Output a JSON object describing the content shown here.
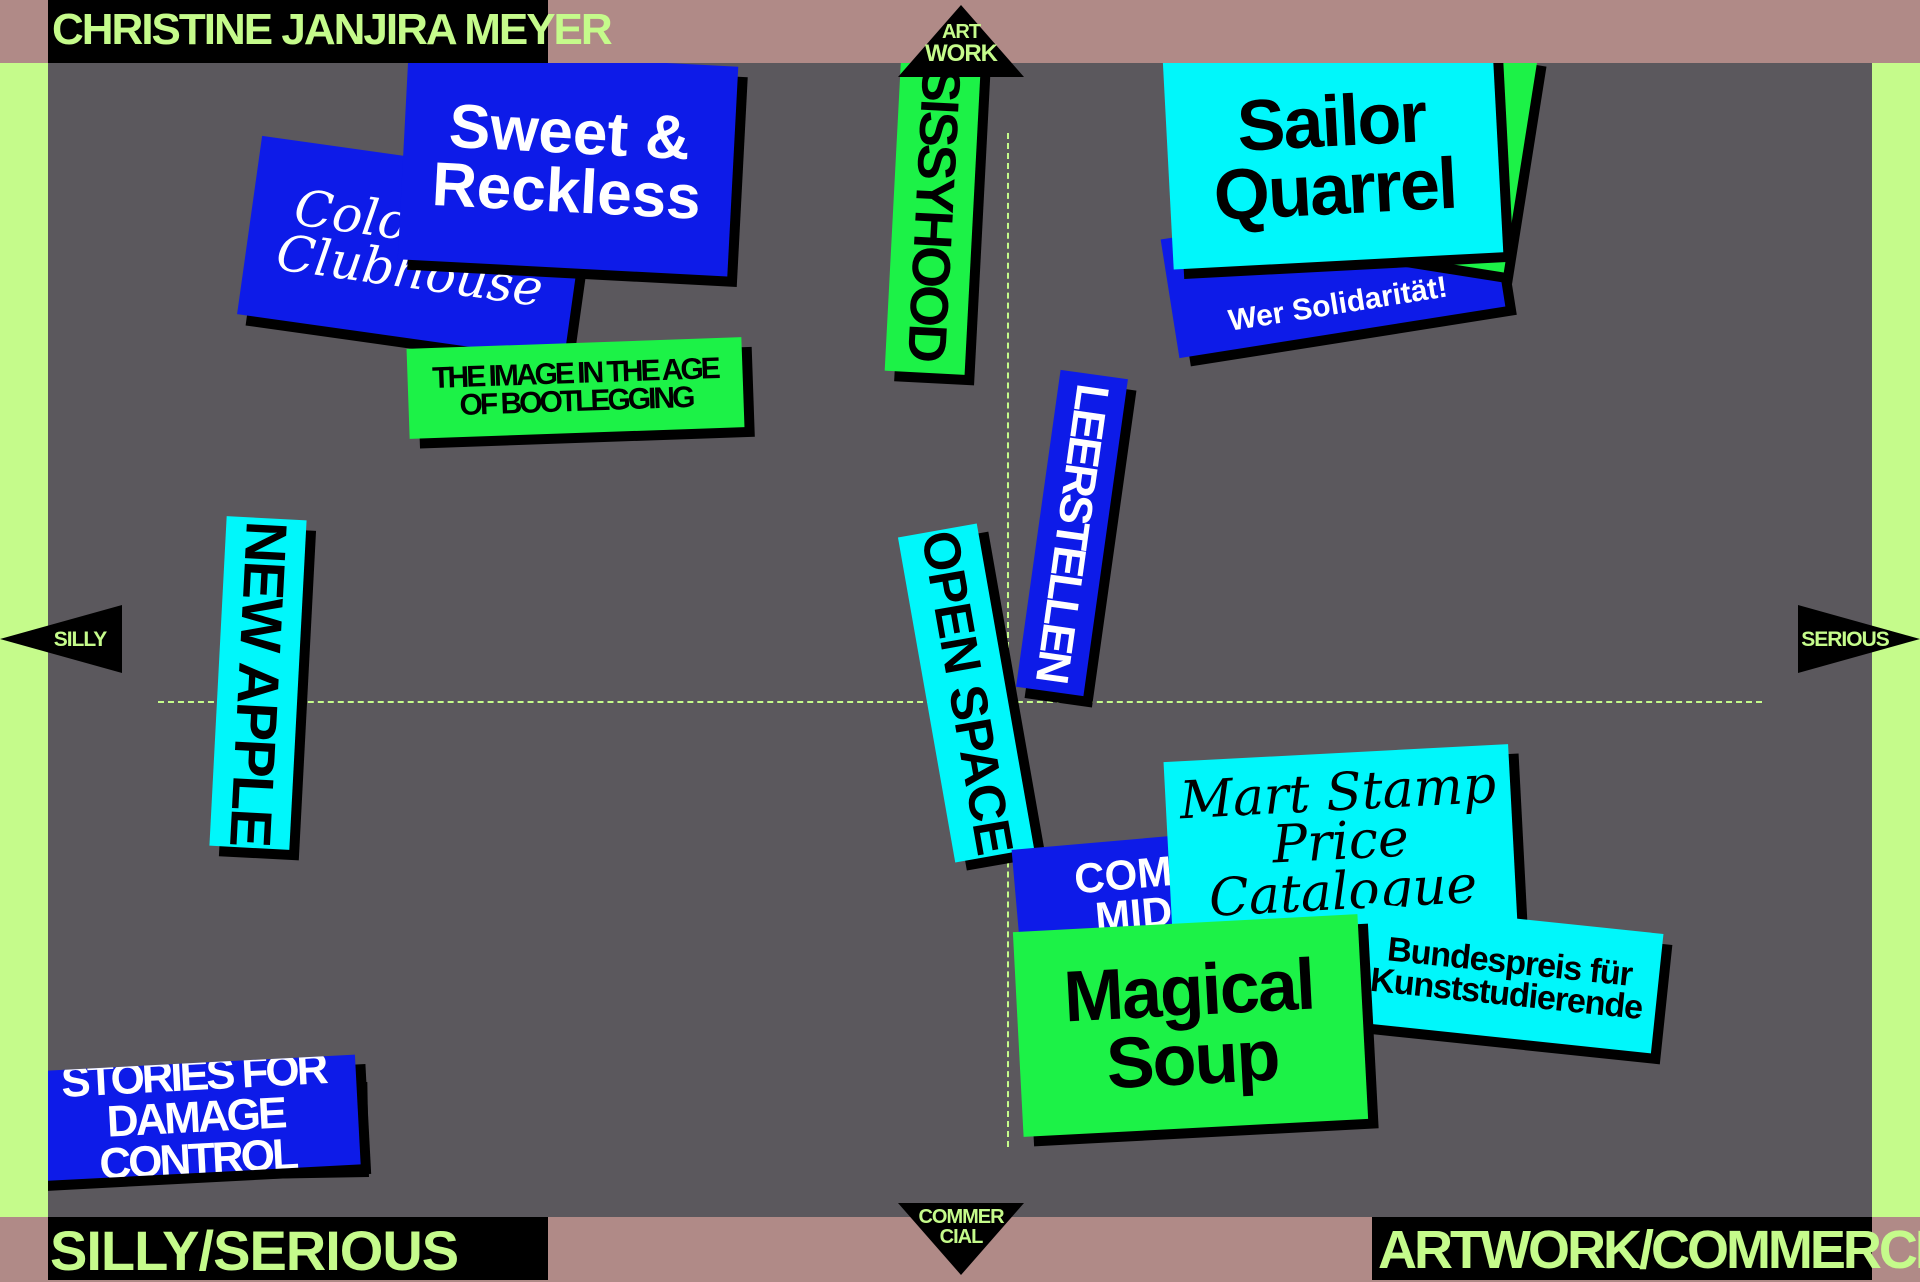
{
  "header": {
    "name": "CHRISTINE JANJIRA MEYER"
  },
  "footer": {
    "left": "SILLY/SERIOUS",
    "right": "ARTWORK/COMMERCIAL"
  },
  "axes": {
    "top": [
      "ART",
      "WORK"
    ],
    "bottom": [
      "COMMER",
      "CIAL"
    ],
    "left": "SILLY",
    "right": "SERIOUS"
  },
  "projects": {
    "sweet_reckless": "Sweet & Reckless",
    "colorama": "Colorama Clubhouse",
    "bootlegging": "THE IMAGE IN THE AGE OF BOOTLEGGING",
    "sisterhood": "SISSYHOOD",
    "sailor_quarrel": "Sailor Quarrel",
    "solidaritat": "Wer Solidarität!",
    "leerstellen": "LEERSTELLEN",
    "new_apple": "NEW APPLE",
    "open_space": "OPEN SPACE",
    "mart_stamp": "Mart Stamp Price Catalogue",
    "commons": "COMMON MIDDLE",
    "bundespreis": "Bundespreis für Kunststudierende",
    "magical_soup": "Magical Soup",
    "stories": "STORIES FOR DAMAGE CONTROL"
  },
  "colors": {
    "frame": "#c5fb8b",
    "board": "#5b585d",
    "top_bottom_bar": "#b08a87",
    "blue": "#0d1be8",
    "cyan": "#00f7fb",
    "green": "#1cf247"
  }
}
